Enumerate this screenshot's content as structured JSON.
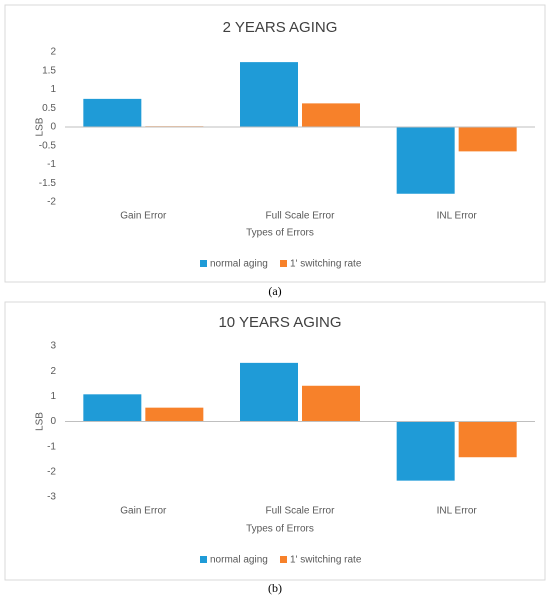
{
  "chart_data": [
    {
      "type": "bar",
      "title": "2 YEARS AGING",
      "caption": "(a)",
      "x_label": "Types of Errors",
      "y_label": "LSB",
      "categories": [
        "Gain Error",
        "Full Scale Error",
        "INL Error"
      ],
      "series": [
        {
          "name": "normal aging",
          "color": "#1f9bd7",
          "values": [
            0.75,
            1.73,
            -1.78
          ]
        },
        {
          "name": "1' switching rate",
          "color": "#f7812a",
          "values": [
            0.02,
            0.63,
            -0.65
          ]
        }
      ],
      "ylim": [
        -2,
        2
      ],
      "yticks": [
        -2,
        -1.5,
        -1,
        -0.5,
        0,
        0.5,
        1,
        1.5,
        2
      ],
      "legend": "bottom"
    },
    {
      "type": "bar",
      "title": "10 YEARS AGING",
      "caption": "(b)",
      "x_label": "Types of Errors",
      "y_label": "LSB",
      "categories": [
        "Gain Error",
        "Full Scale Error",
        "INL Error"
      ],
      "series": [
        {
          "name": "normal aging",
          "color": "#1f9bd7",
          "values": [
            1.08,
            2.33,
            -2.35
          ]
        },
        {
          "name": "1' switching rate",
          "color": "#f7812a",
          "values": [
            0.55,
            1.42,
            -1.42
          ]
        }
      ],
      "ylim": [
        -3,
        3
      ],
      "yticks": [
        -3,
        -2,
        -1,
        0,
        1,
        2,
        3
      ],
      "legend": "bottom"
    }
  ]
}
